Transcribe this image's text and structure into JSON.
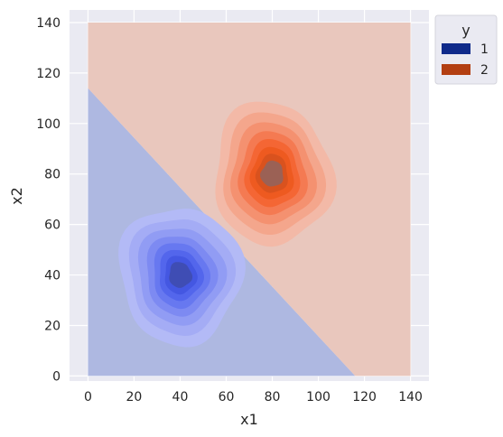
{
  "chart_data": {
    "type": "contour",
    "xlabel": "x1",
    "ylabel": "x2",
    "xlim": [
      -8,
      148
    ],
    "ylim": [
      -2,
      145
    ],
    "xticks": [
      0,
      20,
      40,
      60,
      80,
      100,
      120,
      140
    ],
    "yticks": [
      0,
      20,
      40,
      60,
      80,
      100,
      120,
      140
    ],
    "grid": true,
    "decision_region": {
      "x_range": [
        0,
        140
      ],
      "y_range": [
        0,
        140
      ],
      "boundary_line": {
        "intercept_at_x0": 114,
        "crosses_x_axis_at": 116
      },
      "region_class_below": "1",
      "region_class_above": "2"
    },
    "series": [
      {
        "name": "1",
        "center": [
          40,
          40
        ],
        "contour_rx": [
          26,
          22,
          18.5,
          15,
          12,
          9.5,
          7,
          5
        ],
        "contour_ry": [
          28,
          23.5,
          19.5,
          16,
          13,
          10,
          7.5,
          5
        ],
        "colors": [
          "#b3baf6",
          "#a4acf5",
          "#919cf4",
          "#7d8af2",
          "#6778f0",
          "#5366ec",
          "#4457e2",
          "#3f4db4"
        ],
        "region_fill": "#aeb8e1"
      },
      {
        "name": "2",
        "center": [
          80,
          80
        ],
        "contour_rx": [
          26,
          22,
          18.5,
          15,
          12,
          9.5,
          7,
          5
        ],
        "contour_ry": [
          28,
          23.5,
          19.5,
          16,
          13,
          10,
          7.5,
          5
        ],
        "colors": [
          "#f3b9a7",
          "#f4a68c",
          "#f49170",
          "#f47a52",
          "#f46634",
          "#ee5a20",
          "#d9521e",
          "#9b6155"
        ],
        "region_fill": "#e9c7bd"
      }
    ],
    "legend": {
      "title": "y",
      "placement": "outside-right",
      "entries": [
        {
          "label": "1",
          "color": "#0f2a8a"
        },
        {
          "label": "2",
          "color": "#b33f12"
        }
      ]
    },
    "plot_background": "#eaeaf2"
  }
}
